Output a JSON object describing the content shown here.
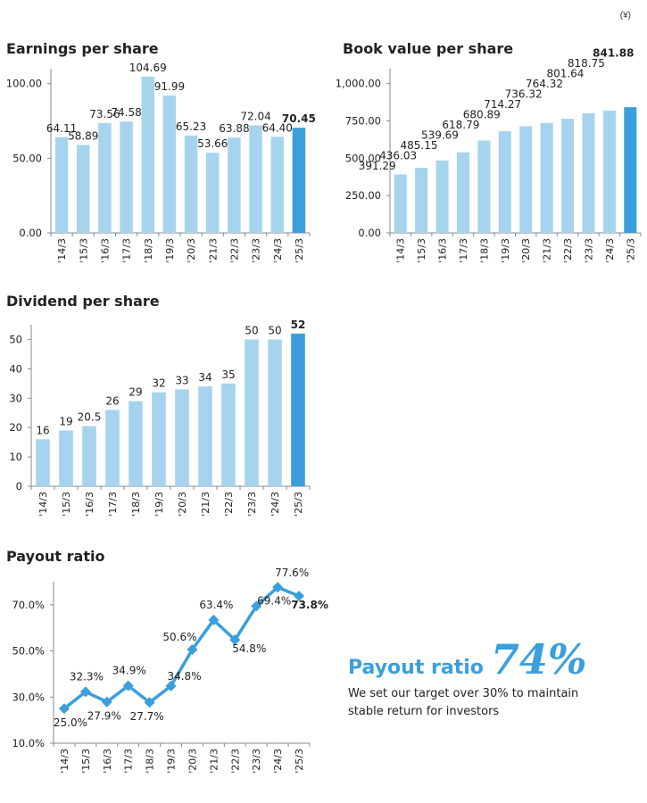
{
  "unit_note": "(¥)",
  "colors": {
    "bar": "#a6d4ee",
    "bar_highlight": "#3a9fdc",
    "line": "#3a9fdc",
    "axis": "#888888"
  },
  "chart_data": [
    {
      "id": "eps",
      "type": "bar",
      "title": "Earnings per share",
      "categories": [
        "'14/3",
        "'15/3",
        "'16/3",
        "'17/3",
        "'18/3",
        "'19/3",
        "'20/3",
        "'21/3",
        "'22/3",
        "'23/3",
        "'24/3",
        "'25/3"
      ],
      "values": [
        64.11,
        58.89,
        73.56,
        74.58,
        104.69,
        91.99,
        65.23,
        53.66,
        63.88,
        72.04,
        64.4,
        70.45
      ],
      "value_labels": [
        "64.11",
        "58.89",
        "73.56",
        "74.58",
        "104.69",
        "91.99",
        "65.23",
        "53.66",
        "63.88",
        "72.04",
        "64.40",
        "70.45"
      ],
      "y_ticks": [
        0,
        50,
        100
      ],
      "y_tick_labels": [
        "0.00",
        "50.00",
        "100.00"
      ],
      "ylim": [
        0,
        110
      ],
      "highlight_index": 11
    },
    {
      "id": "bvps",
      "type": "bar",
      "title": "Book value per share",
      "categories": [
        "'14/3",
        "'15/3",
        "'16/3",
        "'17/3",
        "'18/3",
        "'19/3",
        "'20/3",
        "'21/3",
        "'22/3",
        "'23/3",
        "'24/3",
        "'25/3"
      ],
      "values": [
        391.29,
        436.03,
        485.15,
        539.69,
        618.79,
        680.89,
        714.27,
        736.32,
        764.32,
        801.64,
        818.75,
        841.88
      ],
      "value_labels": [
        "391.29",
        "436.03",
        "485.15",
        "539.69",
        "618.79",
        "680.89",
        "714.27",
        "736.32",
        "764.32",
        "801.64",
        "818.75",
        "841.88"
      ],
      "y_ticks": [
        0,
        250,
        500,
        750,
        1000
      ],
      "y_tick_labels": [
        "0.00",
        "250.00",
        "500.00",
        "750.00",
        "1,000.00"
      ],
      "ylim": [
        0,
        1100
      ],
      "highlight_index": 11
    },
    {
      "id": "dps",
      "type": "bar",
      "title": "Dividend per share",
      "categories": [
        "'14/3",
        "'15/3",
        "'16/3",
        "'17/3",
        "'18/3",
        "'19/3",
        "'20/3",
        "'21/3",
        "'22/3",
        "'23/3",
        "'24/3",
        "'25/3"
      ],
      "values": [
        16,
        19,
        20.5,
        26,
        29,
        32,
        33,
        34,
        35,
        50,
        50,
        52
      ],
      "value_labels": [
        "16",
        "19",
        "20.5",
        "26",
        "29",
        "32",
        "33",
        "34",
        "35",
        "50",
        "50",
        "52"
      ],
      "y_ticks": [
        0,
        10,
        20,
        30,
        40,
        50
      ],
      "y_tick_labels": [
        "0",
        "10",
        "20",
        "30",
        "40",
        "50"
      ],
      "ylim": [
        0,
        55
      ],
      "highlight_index": 11
    },
    {
      "id": "payout",
      "type": "line",
      "title": "Payout ratio",
      "categories": [
        "'14/3",
        "'15/3",
        "'16/3",
        "'17/3",
        "'18/3",
        "'19/3",
        "'20/3",
        "'21/3",
        "'22/3",
        "'23/3",
        "'24/3",
        "'25/3"
      ],
      "values": [
        25.0,
        32.3,
        27.9,
        34.9,
        27.7,
        34.8,
        50.6,
        63.4,
        54.8,
        69.4,
        77.6,
        73.8
      ],
      "value_labels": [
        "25.0%",
        "32.3%",
        "27.9%",
        "34.9%",
        "27.7%",
        "34.8%",
        "50.6%",
        "63.4%",
        "54.8%",
        "69.4%",
        "77.6%",
        "73.8%"
      ],
      "y_ticks": [
        10,
        30,
        50,
        70
      ],
      "y_tick_labels": [
        "10.0%",
        "30.0%",
        "50.0%",
        "70.0%"
      ],
      "ylim": [
        10,
        80
      ],
      "highlight_index": 11
    }
  ],
  "callout": {
    "label": "Payout ratio",
    "value": "74%",
    "text": "We set our target over 30% to maintain stable return for investors"
  }
}
